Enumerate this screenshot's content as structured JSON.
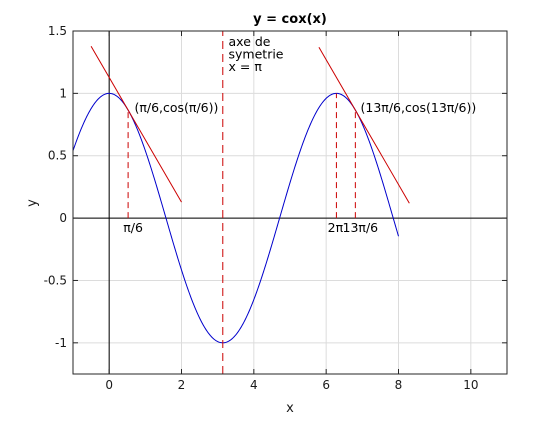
{
  "chart_data": {
    "type": "line",
    "title": "y = cox(x)",
    "xlabel": "x",
    "ylabel": "y",
    "xlim": [
      -1,
      11
    ],
    "ylim": [
      -1.25,
      1.5
    ],
    "xticks": [
      0,
      2,
      4,
      6,
      8,
      10
    ],
    "yticks": [
      -1,
      -0.5,
      0,
      0.5,
      1,
      1.5
    ],
    "xtick_labels": [
      "0",
      "2",
      "4",
      "6",
      "8",
      "10"
    ],
    "ytick_labels": [
      "-1",
      "-0.5",
      "0",
      "0.5",
      "1",
      "1.5"
    ],
    "grid": true,
    "colors": {
      "curve": "#0000cc",
      "tangent": "#cc0000",
      "marker": "#cc0000",
      "axes": "#000000",
      "grid": "#dcdcdc"
    },
    "curve": {
      "function": "cos",
      "x_start": -1,
      "x_end": 8
    },
    "tangents": [
      {
        "x0": 0.5236,
        "x_from": -0.5,
        "x_to": 2.0
      },
      {
        "x0": 6.8068,
        "x_from": 5.8,
        "x_to": 8.3
      }
    ],
    "vertical_markers": [
      {
        "x": 0.5236,
        "y_to": 0.866,
        "label": "π/6"
      },
      {
        "x": 6.2832,
        "y_to": 1.0,
        "label": "2π"
      },
      {
        "x": 6.8068,
        "y_to": 0.866,
        "label": "13π/6"
      }
    ],
    "symmetry_line": {
      "x": 3.1416,
      "y_from": -1.25,
      "y_to": 1.5
    },
    "annotations": [
      {
        "text": "(π/6,cos(π/6))",
        "x": 0.7,
        "y": 0.85
      },
      {
        "text": "(13π/6,cos(13π/6))",
        "x": 6.95,
        "y": 0.85
      },
      {
        "lines": [
          "axe de",
          "symetrie",
          "x = π"
        ],
        "x": 3.3,
        "y": 1.38
      }
    ]
  }
}
